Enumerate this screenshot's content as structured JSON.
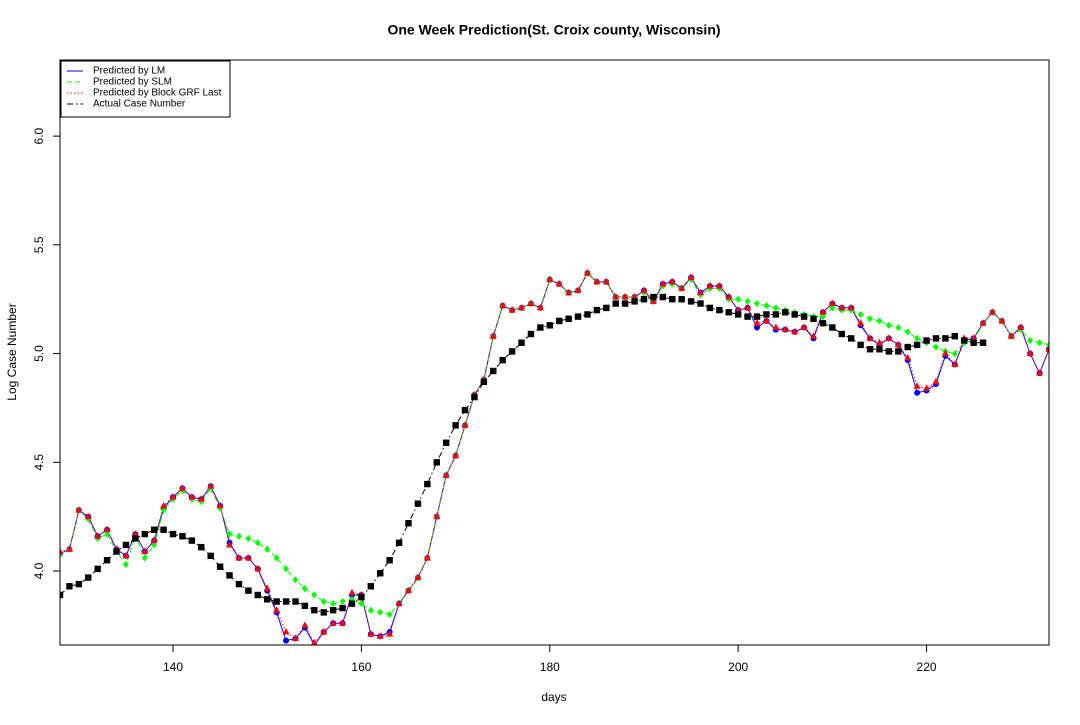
{
  "chart_data": {
    "type": "line",
    "title": "One Week Prediction(St. Croix county, Wisconsin)",
    "x_label": "days",
    "y_label": "Log Case Number",
    "xlim": [
      128,
      233
    ],
    "ylim": [
      3.66,
      6.35
    ],
    "xticks": [
      140,
      160,
      180,
      200,
      220
    ],
    "yticks": [
      {
        "value": 4,
        "label": "4.0"
      },
      4.5,
      {
        "value": 5,
        "label": "5.0"
      },
      5.5,
      {
        "value": 6,
        "label": "6.0"
      }
    ],
    "legend": "top-left",
    "x": [
      128,
      129,
      130,
      131,
      132,
      133,
      134,
      135,
      136,
      137,
      138,
      139,
      140,
      141,
      142,
      143,
      144,
      145,
      146,
      147,
      148,
      149,
      150,
      151,
      152,
      153,
      154,
      155,
      156,
      157,
      158,
      159,
      160,
      161,
      162,
      163,
      164,
      165,
      166,
      167,
      168,
      169,
      170,
      171,
      172,
      173,
      174,
      175,
      176,
      177,
      178,
      179,
      180,
      181,
      182,
      183,
      184,
      185,
      186,
      187,
      188,
      189,
      190,
      191,
      192,
      193,
      194,
      195,
      196,
      197,
      198,
      199,
      200,
      201,
      202,
      203,
      204,
      205,
      206,
      207,
      208,
      209,
      210,
      211,
      212,
      213,
      214,
      215,
      216,
      217,
      218,
      219,
      220,
      221,
      222,
      223,
      224,
      225,
      226,
      227,
      228,
      229,
      230,
      231,
      232,
      233
    ],
    "series": [
      {
        "name": "Predicted by LM",
        "color": "#0000ff",
        "line": "solid",
        "marker": "circle",
        "values": [
          4.08,
          4.1,
          4.28,
          4.25,
          4.16,
          4.19,
          4.1,
          4.07,
          4.17,
          4.09,
          4.14,
          4.29,
          4.34,
          4.38,
          4.34,
          4.33,
          4.39,
          4.3,
          4.13,
          4.06,
          4.06,
          4.01,
          3.91,
          3.81,
          3.68,
          3.69,
          3.74,
          3.66,
          3.72,
          3.76,
          3.76,
          3.89,
          3.89,
          3.71,
          3.7,
          3.72,
          3.85,
          3.91,
          3.97,
          4.06,
          4.25,
          4.44,
          4.53,
          4.67,
          4.81,
          4.88,
          5.08,
          5.22,
          5.2,
          5.21,
          5.23,
          5.21,
          5.34,
          5.32,
          5.28,
          5.29,
          5.37,
          5.33,
          5.33,
          5.26,
          5.26,
          5.26,
          5.29,
          5.24,
          5.32,
          5.33,
          5.3,
          5.35,
          5.28,
          5.31,
          5.31,
          5.26,
          5.2,
          5.21,
          5.12,
          5.15,
          5.11,
          5.11,
          5.1,
          5.12,
          5.07,
          5.19,
          5.23,
          5.21,
          5.21,
          5.13,
          5.07,
          5.04,
          5.07,
          5.04,
          4.97,
          4.82,
          4.83,
          4.86,
          4.99,
          4.95,
          5.06,
          5.07,
          5.14,
          5.19,
          5.15,
          5.08,
          5.12,
          5.0,
          4.91,
          5.02
        ]
      },
      {
        "name": "Predicted by SLM",
        "color": "#00ff00",
        "line": "dashed",
        "marker": "diamond",
        "values": [
          4.08,
          4.1,
          4.28,
          4.24,
          4.15,
          4.17,
          4.09,
          4.03,
          4.16,
          4.06,
          4.12,
          4.28,
          4.33,
          4.37,
          4.33,
          4.32,
          4.38,
          4.29,
          4.17,
          4.16,
          4.15,
          4.13,
          4.1,
          4.06,
          4.01,
          3.96,
          3.92,
          3.89,
          3.86,
          3.85,
          3.86,
          3.87,
          3.85,
          3.82,
          3.81,
          3.8,
          3.85,
          3.91,
          3.97,
          4.06,
          4.25,
          4.44,
          4.53,
          4.67,
          4.81,
          4.88,
          5.08,
          5.22,
          5.2,
          5.21,
          5.23,
          5.21,
          5.34,
          5.32,
          5.28,
          5.29,
          5.37,
          5.33,
          5.33,
          5.26,
          5.26,
          5.26,
          5.28,
          5.24,
          5.31,
          5.32,
          5.3,
          5.34,
          5.27,
          5.3,
          5.3,
          5.25,
          5.25,
          5.24,
          5.23,
          5.22,
          5.21,
          5.2,
          5.19,
          5.18,
          5.17,
          5.17,
          5.21,
          5.2,
          5.2,
          5.18,
          5.16,
          5.15,
          5.13,
          5.12,
          5.1,
          5.07,
          5.05,
          5.03,
          5.01,
          5.0,
          5.05,
          5.06,
          5.14,
          5.19,
          5.15,
          5.08,
          5.11,
          5.06,
          5.05,
          5.04
        ]
      },
      {
        "name": "Predicted by Block GRF Last",
        "color": "#ff0000",
        "line": "dotted",
        "marker": "triangle",
        "values": [
          4.09,
          4.1,
          4.28,
          4.25,
          4.16,
          4.19,
          4.1,
          4.07,
          4.17,
          4.09,
          4.14,
          4.3,
          4.34,
          4.38,
          4.34,
          4.33,
          4.39,
          4.3,
          4.12,
          4.06,
          4.06,
          4.01,
          3.92,
          3.82,
          3.72,
          3.69,
          3.75,
          3.67,
          3.72,
          3.76,
          3.76,
          3.9,
          3.89,
          3.71,
          3.7,
          3.71,
          3.85,
          3.91,
          3.97,
          4.06,
          4.25,
          4.44,
          4.53,
          4.67,
          4.81,
          4.88,
          5.08,
          5.22,
          5.2,
          5.21,
          5.23,
          5.21,
          5.34,
          5.32,
          5.28,
          5.29,
          5.37,
          5.33,
          5.33,
          5.26,
          5.26,
          5.26,
          5.29,
          5.24,
          5.32,
          5.33,
          5.3,
          5.35,
          5.28,
          5.31,
          5.31,
          5.26,
          5.2,
          5.21,
          5.14,
          5.15,
          5.12,
          5.11,
          5.1,
          5.12,
          5.08,
          5.19,
          5.23,
          5.21,
          5.21,
          5.14,
          5.07,
          5.05,
          5.07,
          5.04,
          4.98,
          4.85,
          4.84,
          4.87,
          5.0,
          4.95,
          5.07,
          5.07,
          5.14,
          5.19,
          5.15,
          5.08,
          5.12,
          5.0,
          4.91,
          5.02
        ]
      },
      {
        "name": "Actual Case Number",
        "color": "#000000",
        "line": "dashdot",
        "marker": "square",
        "values": [
          3.89,
          3.93,
          3.94,
          3.97,
          4.01,
          4.05,
          4.09,
          4.12,
          4.15,
          4.17,
          4.19,
          4.19,
          4.17,
          4.16,
          4.14,
          4.11,
          4.07,
          4.02,
          3.98,
          3.94,
          3.91,
          3.89,
          3.87,
          3.86,
          3.86,
          3.86,
          3.84,
          3.82,
          3.81,
          3.82,
          3.83,
          3.85,
          3.88,
          3.93,
          3.99,
          4.05,
          4.13,
          4.22,
          4.31,
          4.4,
          4.5,
          4.59,
          4.67,
          4.74,
          4.8,
          4.87,
          4.92,
          4.97,
          5.01,
          5.05,
          5.09,
          5.12,
          5.13,
          5.15,
          5.16,
          5.17,
          5.18,
          5.2,
          5.21,
          5.23,
          5.23,
          5.24,
          5.25,
          5.26,
          5.26,
          5.25,
          5.25,
          5.24,
          5.23,
          5.21,
          5.2,
          5.19,
          5.18,
          5.17,
          5.17,
          5.18,
          5.18,
          5.19,
          5.18,
          5.17,
          5.16,
          5.14,
          5.12,
          5.09,
          5.07,
          5.04,
          5.02,
          5.02,
          5.01,
          5.01,
          5.03,
          5.04,
          5.06,
          5.07,
          5.07,
          5.08,
          5.06,
          5.05,
          5.05,
          null,
          null,
          null,
          null,
          null,
          null,
          null
        ]
      }
    ]
  }
}
